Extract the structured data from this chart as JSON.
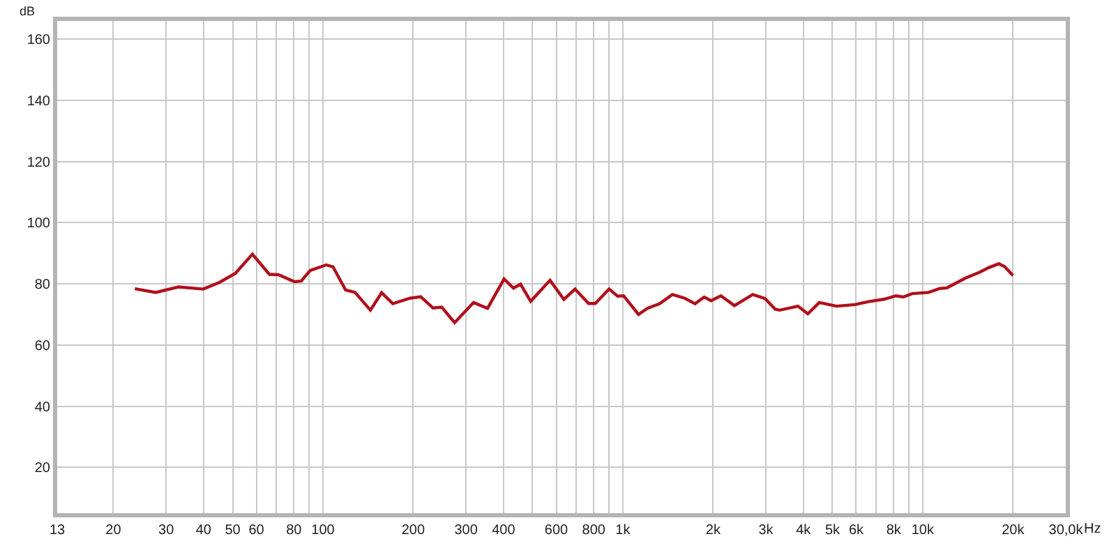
{
  "chart_data": {
    "type": "line",
    "ylabel": "dB",
    "log": "x",
    "grid": true,
    "marker": "none",
    "line_style": "solid",
    "xlim": [
      13,
      30000
    ],
    "ylim": [
      5,
      166
    ],
    "xticks": [
      13,
      20,
      30,
      40,
      50,
      60,
      {
        "value": 70,
        "label": null
      },
      80,
      {
        "value": 90,
        "label": null
      },
      100,
      200,
      300,
      400,
      {
        "value": 500,
        "label": null
      },
      600,
      {
        "value": 700,
        "label": null
      },
      800,
      {
        "value": 900,
        "label": null
      },
      {
        "value": 1000,
        "label": "1k"
      },
      {
        "value": 2000,
        "label": "2k"
      },
      {
        "value": 3000,
        "label": "3k"
      },
      {
        "value": 4000,
        "label": "4k"
      },
      {
        "value": 5000,
        "label": "5k"
      },
      {
        "value": 6000,
        "label": "6k"
      },
      {
        "value": 7000,
        "label": null
      },
      {
        "value": 8000,
        "label": "8k"
      },
      {
        "value": 9000,
        "label": null
      },
      {
        "value": 10000,
        "label": "10k"
      },
      {
        "value": 20000,
        "label": "20k"
      },
      {
        "value": 30000,
        "label": "30,0k"
      }
    ],
    "xlabel": "Hz",
    "yticks": [
      20,
      40,
      60,
      80,
      100,
      120,
      140,
      160
    ],
    "series": [
      {
        "color": "#b0101c",
        "x": [
          23.6,
          27.7,
          33,
          39.9,
          45.2,
          51,
          58.2,
          66.3,
          71.1,
          80.3,
          84.6,
          90.7,
          102.5,
          108,
          119,
          128,
          144,
          157,
          171,
          195,
          212,
          233,
          249,
          267,
          275,
          318,
          354,
          402,
          432,
          456,
          493,
          572,
          636,
          693,
          769,
          810,
          900,
          961,
          1006,
          1128,
          1208,
          1327,
          1463,
          1610,
          1742,
          1868,
          1968,
          2124,
          2357,
          2712,
          2980,
          3223,
          3337,
          3836,
          4140,
          4520,
          5160,
          5940,
          6600,
          7460,
          8150,
          8600,
          9230,
          10460,
          11420,
          12050,
          13900,
          15470,
          16600,
          17950,
          18780,
          20000
        ],
        "values": [
          78.4,
          77.2,
          79.0,
          78.3,
          80.5,
          83.4,
          89.7,
          83.1,
          83.0,
          80.7,
          80.9,
          84.4,
          86.2,
          85.6,
          78.0,
          77.2,
          71.4,
          77.1,
          73.5,
          75.3,
          75.8,
          72.1,
          72.4,
          68.8,
          67.3,
          73.9,
          72.0,
          81.6,
          78.6,
          79.9,
          74.3,
          81.2,
          74.9,
          78.3,
          73.6,
          73.6,
          78.3,
          76.0,
          76.1,
          70.0,
          72.0,
          73.5,
          76.5,
          75.3,
          73.5,
          75.7,
          74.5,
          76.1,
          72.9,
          76.5,
          75.2,
          71.7,
          71.4,
          72.7,
          70.2,
          73.9,
          72.7,
          73.2,
          74.2,
          75.0,
          76.1,
          75.7,
          76.8,
          77.2,
          78.5,
          78.7,
          81.9,
          83.8,
          85.3,
          86.6,
          85.6,
          82.7
        ]
      }
    ]
  }
}
